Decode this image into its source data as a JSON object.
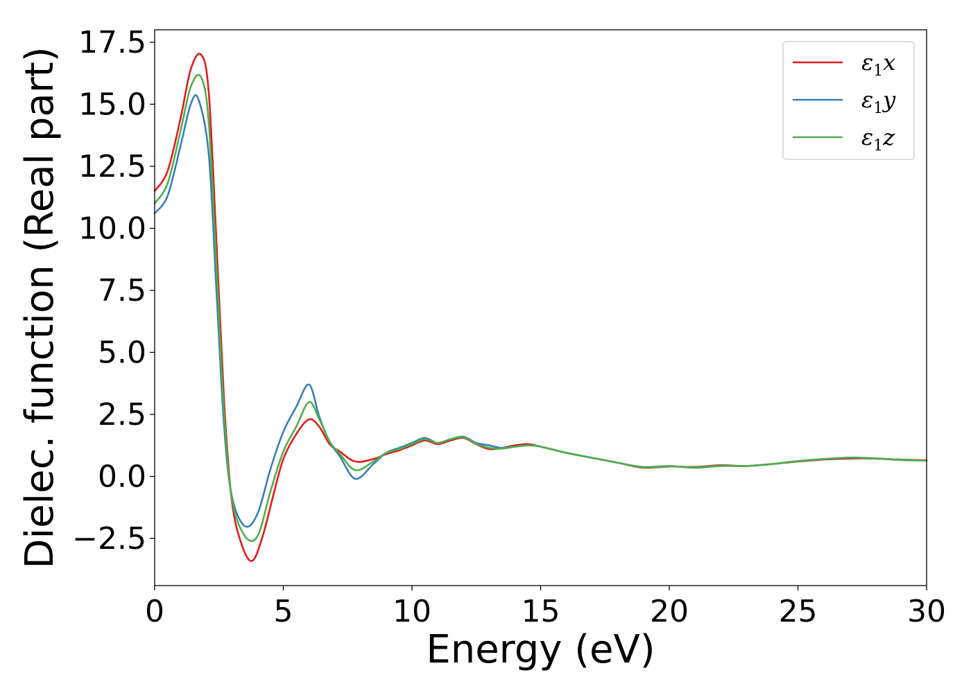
{
  "chart_data": {
    "type": "line",
    "title": "",
    "xlabel": "Energy (eV)",
    "ylabel": "Dielec. function (Real part)",
    "xlim": [
      0,
      30
    ],
    "ylim": [
      -4.4,
      18.0
    ],
    "grid": false,
    "legend_position": "top-right",
    "x_ticks": [
      0,
      5,
      10,
      15,
      20,
      25,
      30
    ],
    "x_tick_labels": [
      "0",
      "5",
      "10",
      "15",
      "20",
      "25",
      "30"
    ],
    "y_ticks": [
      -2.5,
      0.0,
      2.5,
      5.0,
      7.5,
      10.0,
      12.5,
      15.0,
      17.5
    ],
    "y_tick_labels": [
      "−2.5",
      "0.0",
      "2.5",
      "5.0",
      "7.5",
      "10.0",
      "12.5",
      "15.0",
      "17.5"
    ],
    "series": [
      {
        "name": "ε₁x",
        "legend_base": "ε",
        "legend_sub": "1",
        "legend_suffix": "x",
        "color": "#e41a1c",
        "x": [
          0,
          0.5,
          1.0,
          1.4,
          1.8,
          2.1,
          2.4,
          2.7,
          3.0,
          3.4,
          3.8,
          4.2,
          4.6,
          5.0,
          5.5,
          6.0,
          6.4,
          6.8,
          7.2,
          7.8,
          8.5,
          9.0,
          9.5,
          10.0,
          10.5,
          11.0,
          11.5,
          12.0,
          12.5,
          13.0,
          13.5,
          14.0,
          14.5,
          15.0,
          16.0,
          17.0,
          18.0,
          19.0,
          20.0,
          21.0,
          22.0,
          23.0,
          24.0,
          25.0,
          26.0,
          27.0,
          28.0,
          29.0,
          30.0
        ],
        "y": [
          11.5,
          12.3,
          14.4,
          16.4,
          17.0,
          15.5,
          9.5,
          3.0,
          -1.0,
          -2.8,
          -3.4,
          -2.4,
          -0.8,
          0.7,
          1.7,
          2.3,
          2.0,
          1.3,
          1.0,
          0.6,
          0.7,
          0.9,
          1.05,
          1.25,
          1.45,
          1.3,
          1.45,
          1.55,
          1.3,
          1.1,
          1.15,
          1.25,
          1.3,
          1.2,
          0.95,
          0.75,
          0.55,
          0.35,
          0.4,
          0.38,
          0.45,
          0.42,
          0.5,
          0.6,
          0.68,
          0.72,
          0.72,
          0.68,
          0.65
        ]
      },
      {
        "name": "ε₁y",
        "legend_base": "ε",
        "legend_sub": "1",
        "legend_suffix": "y",
        "color": "#377eb8",
        "x": [
          0,
          0.5,
          1.0,
          1.4,
          1.7,
          2.1,
          2.4,
          2.7,
          3.0,
          3.5,
          4.0,
          4.5,
          5.0,
          5.5,
          6.0,
          6.4,
          6.8,
          7.2,
          7.8,
          8.5,
          9.0,
          9.5,
          10.0,
          10.5,
          11.0,
          11.5,
          12.0,
          12.5,
          13.0,
          13.5,
          14.0,
          14.5,
          15.0,
          16.0,
          17.0,
          18.0,
          19.0,
          20.0,
          21.0,
          22.0,
          23.0,
          24.0,
          25.0,
          26.0,
          27.0,
          28.0,
          29.0,
          30.0
        ],
        "y": [
          10.6,
          11.3,
          13.3,
          15.0,
          15.2,
          13.0,
          7.5,
          2.0,
          -0.8,
          -2.0,
          -1.5,
          0.3,
          1.8,
          2.8,
          3.7,
          2.4,
          1.4,
          0.8,
          -0.1,
          0.5,
          0.95,
          1.15,
          1.35,
          1.55,
          1.35,
          1.5,
          1.6,
          1.35,
          1.25,
          1.15,
          1.2,
          1.25,
          1.2,
          0.95,
          0.75,
          0.55,
          0.38,
          0.42,
          0.35,
          0.42,
          0.42,
          0.5,
          0.62,
          0.7,
          0.75,
          0.72,
          0.66,
          0.64
        ]
      },
      {
        "name": "ε₁z",
        "legend_base": "ε",
        "legend_sub": "1",
        "legend_suffix": "z",
        "color": "#4daf4a",
        "x": [
          0,
          0.5,
          1.0,
          1.4,
          1.8,
          2.1,
          2.4,
          2.7,
          3.0,
          3.5,
          4.0,
          4.5,
          5.0,
          5.5,
          6.0,
          6.4,
          6.8,
          7.2,
          7.8,
          8.5,
          9.0,
          9.5,
          10.0,
          10.5,
          11.0,
          11.5,
          12.0,
          12.5,
          13.0,
          13.5,
          14.0,
          14.5,
          15.0,
          16.0,
          17.0,
          18.0,
          19.0,
          20.0,
          21.0,
          22.0,
          23.0,
          24.0,
          25.0,
          26.0,
          27.0,
          28.0,
          29.0,
          30.0
        ],
        "y": [
          11.0,
          11.8,
          13.9,
          15.7,
          16.1,
          14.3,
          8.5,
          2.5,
          -0.9,
          -2.4,
          -2.4,
          -0.6,
          1.0,
          2.0,
          3.0,
          2.3,
          1.4,
          0.9,
          0.25,
          0.6,
          0.95,
          1.1,
          1.3,
          1.5,
          1.35,
          1.5,
          1.58,
          1.32,
          1.15,
          1.12,
          1.2,
          1.25,
          1.2,
          0.95,
          0.75,
          0.55,
          0.37,
          0.41,
          0.36,
          0.43,
          0.42,
          0.5,
          0.62,
          0.7,
          0.76,
          0.73,
          0.67,
          0.64
        ]
      }
    ]
  }
}
